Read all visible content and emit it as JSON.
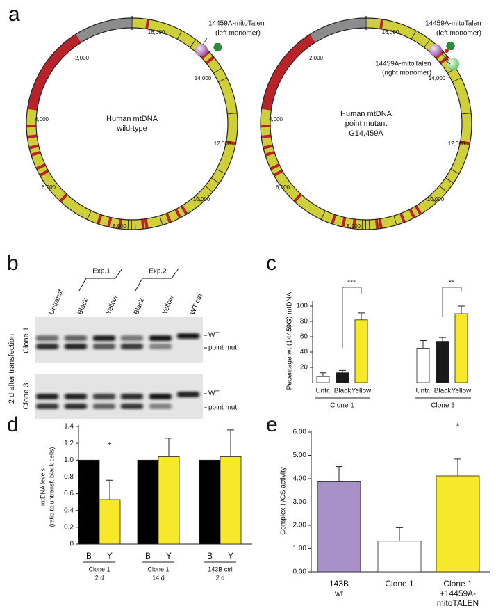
{
  "panel_labels": [
    "a",
    "b",
    "c",
    "d",
    "e"
  ],
  "panel_a": {
    "maps": [
      {
        "center_lines": [
          "Human mtDNA",
          "wild-type"
        ],
        "position_labels": [
          "16,000",
          "2,000",
          "4,000",
          "6,000",
          "8,000",
          "10,000",
          "12,000",
          "14,000"
        ],
        "annotations": [
          [
            "14459A-mitoTalen",
            "(left monomer)"
          ]
        ]
      },
      {
        "center_lines": [
          "Human mtDNA",
          "point mutant",
          "G14,459A"
        ],
        "position_labels": [
          "16,000",
          "2,000",
          "4,000",
          "6,000",
          "8,000",
          "10,000",
          "12,000",
          "14,000"
        ],
        "annotations": [
          [
            "14459A-mitoTalen",
            "(left monomer)"
          ],
          [
            "14459A-mitoTalen",
            "(right monomer)"
          ]
        ]
      }
    ]
  },
  "panel_b": {
    "lanes": [
      "Untransf.",
      "Black",
      "Yellow",
      "Black",
      "Yellow",
      "WT ctrl"
    ],
    "experiments": [
      "Exp.1",
      "Exp.2"
    ],
    "side_label": "2 d after transfection",
    "gels": [
      {
        "clone": "Clone 1",
        "bands": [
          "WT",
          "point mut."
        ]
      },
      {
        "clone": "Clone 3",
        "bands": [
          "WT",
          "point mut."
        ]
      }
    ]
  },
  "chart_data": [
    {
      "type": "bar",
      "y_label": "Pecentage wt (14459G) mtDNA",
      "categories": [
        "Untr.",
        "Black",
        "Yellow",
        "Untr.",
        "Black",
        "Yellow"
      ],
      "group_labels": [
        [
          "Clone 1"
        ],
        [
          "Clone 3"
        ]
      ],
      "values": [
        8,
        13,
        82,
        45,
        54,
        90
      ],
      "errors": [
        5,
        3,
        9,
        10,
        5,
        10
      ],
      "colors": [
        "#ffffff",
        "#1a1a1a",
        "#f7e82a",
        "#ffffff",
        "#1a1a1a",
        "#f7e82a"
      ],
      "ylim": [
        0,
        105
      ],
      "yticks": [
        20,
        40,
        60,
        80,
        100
      ],
      "annotations": [
        "***",
        "**"
      ]
    },
    {
      "type": "bar",
      "y_label": [
        "mtDNA levels",
        "(ratio to untransf. black cells)"
      ],
      "categories": [
        "B",
        "Y",
        "B",
        "Y",
        "B",
        "Y"
      ],
      "group_labels": [
        [
          "Clone 1",
          "2 d"
        ],
        [
          "Clone 1",
          "14 d"
        ],
        [
          "143B ctrl",
          "2 d"
        ]
      ],
      "values": [
        1.0,
        0.53,
        1.0,
        1.04,
        1.0,
        1.04
      ],
      "errors": [
        0,
        0.23,
        0,
        0.22,
        0,
        0.32
      ],
      "colors": [
        "#000000",
        "#f7e82a",
        "#000000",
        "#f7e82a",
        "#000000",
        "#f7e82a"
      ],
      "ylim": [
        0,
        1.4
      ],
      "yticks": [
        0,
        0.2,
        0.4,
        0.6,
        0.8,
        {
          "value": 1,
          "label": "1.0"
        },
        1.2,
        1.4
      ],
      "annotations": [
        "*"
      ]
    },
    {
      "type": "bar",
      "y_label": "Complex I /CS activity",
      "categories": [
        [
          "143B",
          "wt"
        ],
        [
          "Clone 1"
        ],
        [
          "Clone 1",
          "+14459A-",
          "mitoTALEN"
        ]
      ],
      "values": [
        3.87,
        1.32,
        4.12
      ],
      "errors": [
        0.65,
        0.58,
        0.72
      ],
      "colors": [
        "#a890c8",
        "#ffffff",
        "#f7e82a"
      ],
      "ylim": [
        0,
        6
      ],
      "yticks": [
        {
          "value": 0,
          "label": "0.00"
        },
        {
          "value": 1,
          "label": "1.00"
        },
        {
          "value": 2,
          "label": "2.00"
        },
        {
          "value": 3,
          "label": "3.00"
        },
        {
          "value": 4,
          "label": "4.00"
        },
        {
          "value": 5,
          "label": "5.00"
        },
        {
          "value": 6,
          "label": "6.00"
        }
      ],
      "annotations": [
        "*"
      ]
    }
  ]
}
